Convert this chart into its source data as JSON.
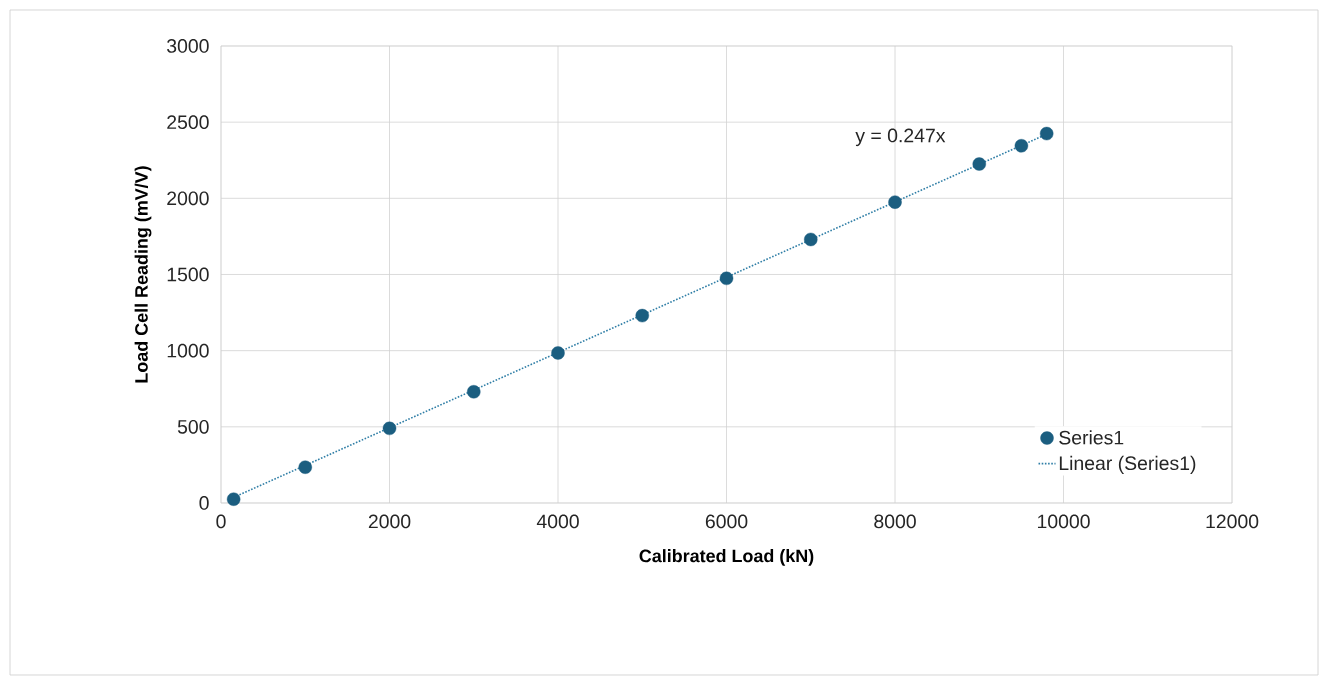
{
  "chart_data": {
    "type": "scatter",
    "xlabel": "Calibrated Load  (kN)",
    "ylabel": "Load Cell Reading (mV/V)",
    "xlim": [
      0,
      12000
    ],
    "xticks": [
      0,
      2000,
      4000,
      6000,
      8000,
      10000,
      12000
    ],
    "ylim": [
      0,
      3000
    ],
    "yticks": [
      0,
      500,
      1000,
      1500,
      2000,
      2500,
      3000
    ],
    "grid": true,
    "legend": "bottom right",
    "series": [
      {
        "name": "Series1",
        "marker": "circle",
        "color": "#1b5e80",
        "x": [
          150,
          1000,
          2000,
          3000,
          4000,
          5000,
          6000,
          7000,
          8000,
          9000,
          9500,
          9800
        ],
        "values": [
          25,
          235,
          490,
          730,
          985,
          1230,
          1475,
          1730,
          1975,
          2225,
          2345,
          2425
        ]
      },
      {
        "name": "Linear (Series1)",
        "type": "line",
        "marker": "none",
        "line_style": "dotted",
        "color": "#2f7ea6",
        "x": [
          150,
          9800
        ],
        "values": [
          37,
          2421
        ]
      }
    ],
    "annotations": [
      "y = 0.247x"
    ]
  }
}
